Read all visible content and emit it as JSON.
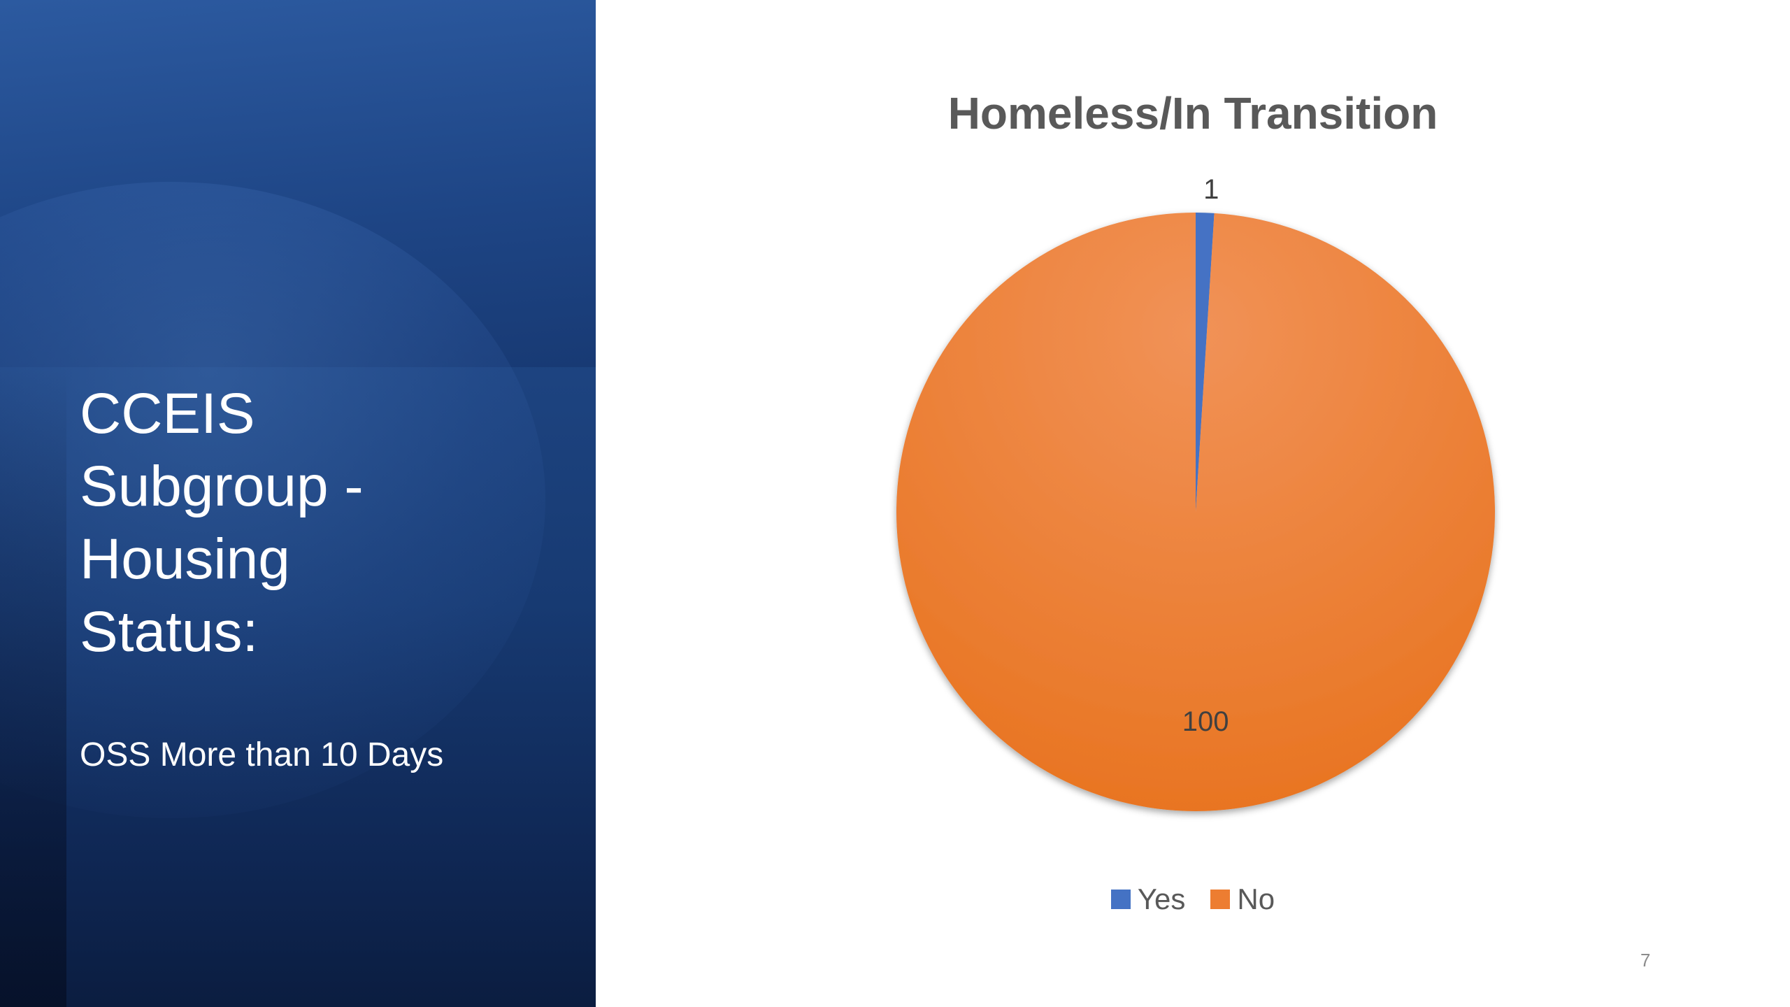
{
  "slide": {
    "title": "CCEIS\nSubgroup -\nHousing\nStatus:",
    "subtitle": "OSS More than 10 Days",
    "slide_number": "7"
  },
  "colors": {
    "panel": "#1f4684",
    "yes": "#4472c4",
    "no": "#ed7d31"
  },
  "chart_data": {
    "type": "pie",
    "title": "Homeless/In Transition",
    "categories": [
      "Yes",
      "No"
    ],
    "values": [
      1,
      100
    ],
    "data_labels": [
      "1",
      "100"
    ],
    "colors": [
      "#4472c4",
      "#ed7d31"
    ],
    "legend_position": "bottom"
  }
}
